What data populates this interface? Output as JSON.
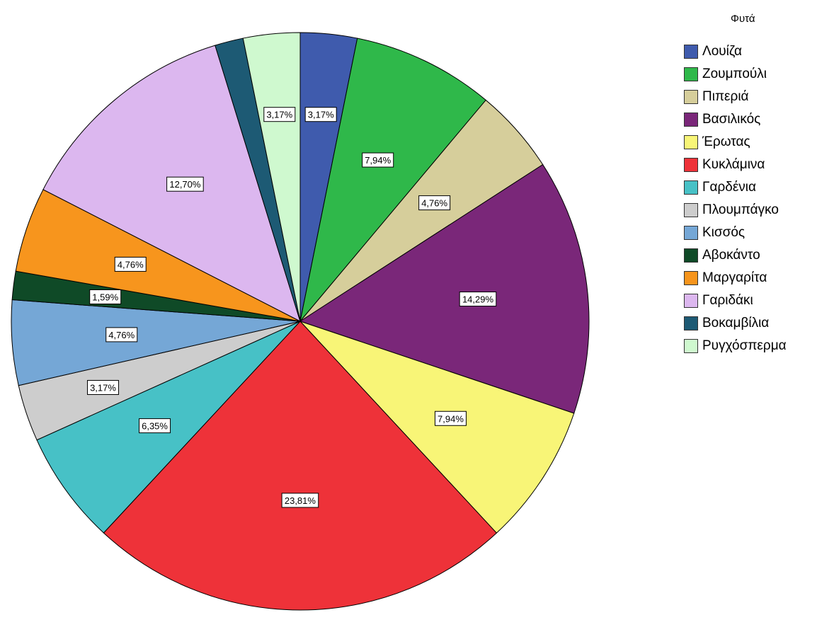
{
  "chart_data": {
    "type": "pie",
    "legend_title": "Φυτά",
    "legend_position": "right",
    "start_angle": "top",
    "direction": "clockwise",
    "slices": [
      {
        "name": "Λουίζα",
        "value": 3.17,
        "label": "3,17%",
        "color": "#3f5bad"
      },
      {
        "name": "Ζουμπούλι",
        "value": 7.94,
        "label": "7,94%",
        "color": "#2fb84a"
      },
      {
        "name": "Πιπεριά",
        "value": 4.76,
        "label": "4,76%",
        "color": "#d6ce9b"
      },
      {
        "name": "Βασιλικός",
        "value": 14.29,
        "label": "14,29%",
        "color": "#7a2779"
      },
      {
        "name": "Έρωτας",
        "value": 7.94,
        "label": "7,94%",
        "color": "#f8f577"
      },
      {
        "name": "Κυκλάμινα",
        "value": 23.81,
        "label": "23,81%",
        "color": "#ee3239"
      },
      {
        "name": "Γαρδένια",
        "value": 6.35,
        "label": "6,35%",
        "color": "#47c1c6"
      },
      {
        "name": "Πλουμπάγκο",
        "value": 3.17,
        "label": "3,17%",
        "color": "#cdcdcd"
      },
      {
        "name": "Κισσός",
        "value": 4.76,
        "label": "4,76%",
        "color": "#75a7d6"
      },
      {
        "name": "Αβοκάντο",
        "value": 1.59,
        "label": "1,59%",
        "color": "#0f4a27"
      },
      {
        "name": "Μαργαρίτα",
        "value": 4.76,
        "label": "4,76%",
        "color": "#f7951d"
      },
      {
        "name": "Γαριδάκι",
        "value": 12.7,
        "label": "12,70%",
        "color": "#dcb7ef"
      },
      {
        "name": "Βοκαμβίλια",
        "value": 1.59,
        "label": "",
        "color": "#1d5a74"
      },
      {
        "name": "Ρυγχόσπερμα",
        "value": 3.17,
        "label": "3,17%",
        "color": "#cff9cf"
      }
    ]
  }
}
